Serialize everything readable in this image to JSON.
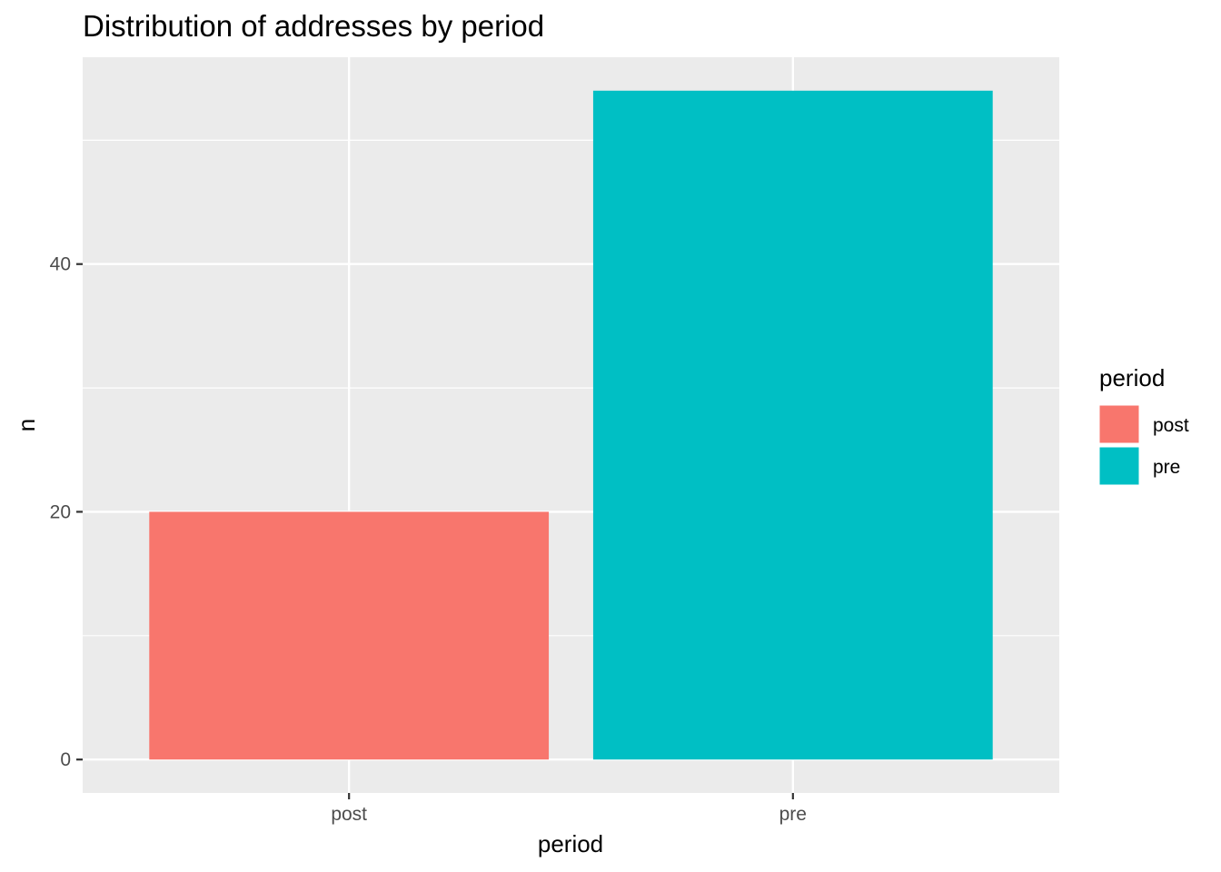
{
  "chart_data": {
    "type": "bar",
    "title": "Distribution of addresses by period",
    "xlabel": "period",
    "ylabel": "n",
    "categories": [
      "post",
      "pre"
    ],
    "values": [
      20,
      54
    ],
    "colors": [
      "#F8766D",
      "#00BFC4"
    ],
    "ylim": [
      -2.7,
      56.7
    ],
    "y_ticks": [
      0,
      20,
      40
    ],
    "y_minor_ticks": [
      10,
      30,
      50
    ],
    "grid": true,
    "panel_background": "#EBEBEB",
    "grid_color": "#FFFFFF",
    "legend": {
      "title": "period",
      "position": "right",
      "entries": [
        {
          "label": "post",
          "color": "#F8766D"
        },
        {
          "label": "pre",
          "color": "#00BFC4"
        }
      ]
    }
  }
}
